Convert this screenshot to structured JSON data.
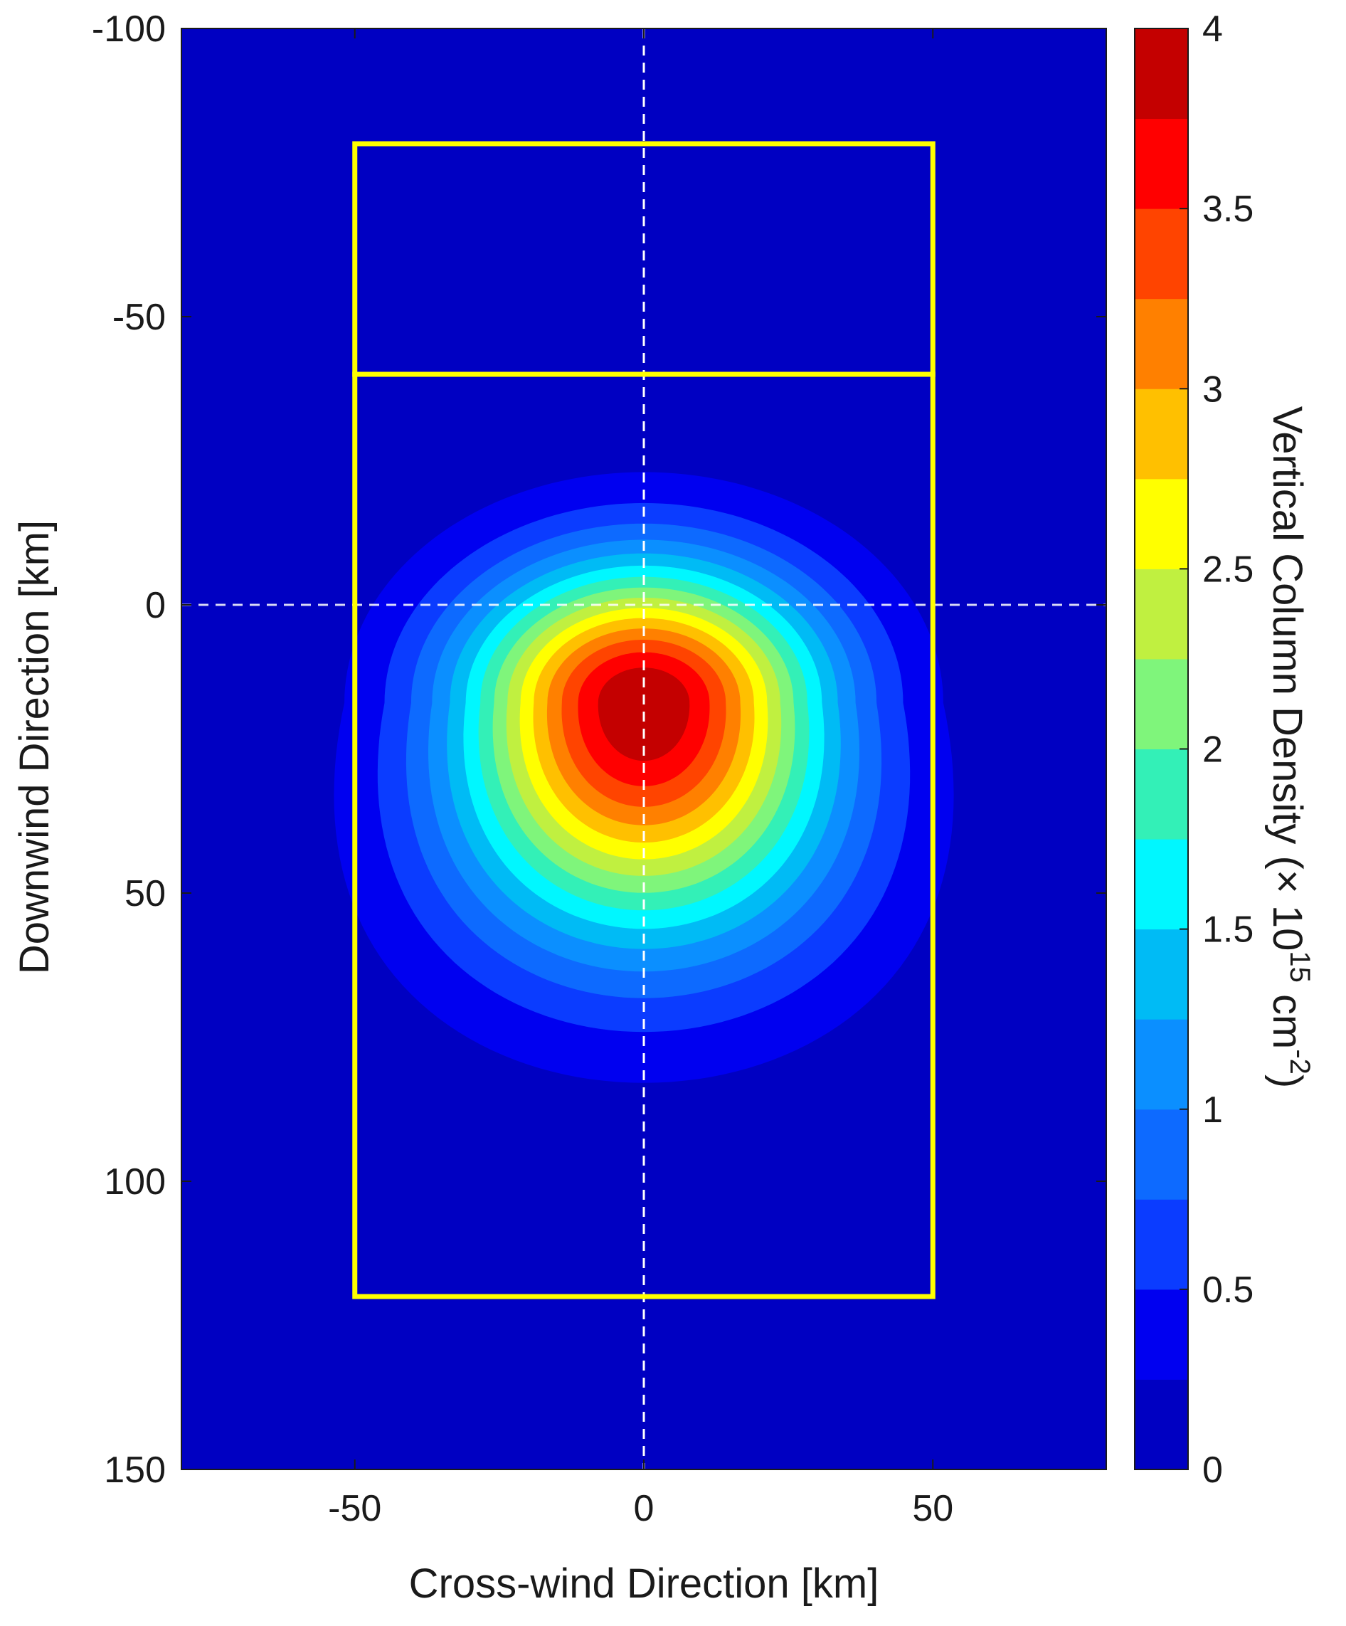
{
  "chart_data": {
    "type": "heatmap",
    "subtype": "filled-contour",
    "xlabel": "Cross-wind Direction [km]",
    "ylabel": "Downwind Direction [km]",
    "xlim": [
      -80,
      80
    ],
    "ylim": [
      -100,
      150
    ],
    "y_axis_reversed": true,
    "xticks": [
      "-50",
      "0",
      "50"
    ],
    "yticks": [
      "-100",
      "-50",
      "0",
      "50",
      "100",
      "150"
    ],
    "colorbar": {
      "label_prefix": "Vertical Column Density (",
      "label_times": "×",
      "label_base": "10",
      "label_exp": "15",
      "label_unit": "cm",
      "label_unit_exp": "-2",
      "label_suffix": ")",
      "range": [
        0,
        4
      ],
      "ticks": [
        "0",
        "0.5",
        "1",
        "1.5",
        "2",
        "2.5",
        "3",
        "3.5",
        "4"
      ],
      "levels": [
        0,
        0.25,
        0.5,
        0.75,
        1.0,
        1.25,
        1.5,
        1.75,
        2.0,
        2.25,
        2.5,
        2.75,
        3.0,
        3.25,
        3.5,
        3.75,
        4.0
      ],
      "colors": [
        "#0000c2",
        "#0000f0",
        "#0b3cff",
        "#0d6aff",
        "#0b8fff",
        "#00bbf5",
        "#00f7ff",
        "#33f0b7",
        "#7ff57b",
        "#c0f040",
        "#ffff00",
        "#ffc000",
        "#ff8000",
        "#ff4400",
        "#ff0000",
        "#c40000",
        "#800000"
      ]
    },
    "plume_model": {
      "description": "Gaussian-like plume, max density near center",
      "peak_value": 4.0,
      "peak_x": 0,
      "peak_y": 17,
      "sigma_x_at_peak": 22,
      "sigma_y_upwind": 17,
      "sigma_y_downwind": 28
    },
    "grid": false,
    "reference_lines": {
      "x_zero": 0,
      "y_zero": 0,
      "color": "#ffffff"
    },
    "boxes": [
      {
        "x": [
          -50,
          50
        ],
        "y": [
          -80,
          -40
        ],
        "color": "#ffff00"
      },
      {
        "x": [
          -50,
          50
        ],
        "y": [
          -40,
          120
        ],
        "color": "#ffff00"
      }
    ]
  }
}
